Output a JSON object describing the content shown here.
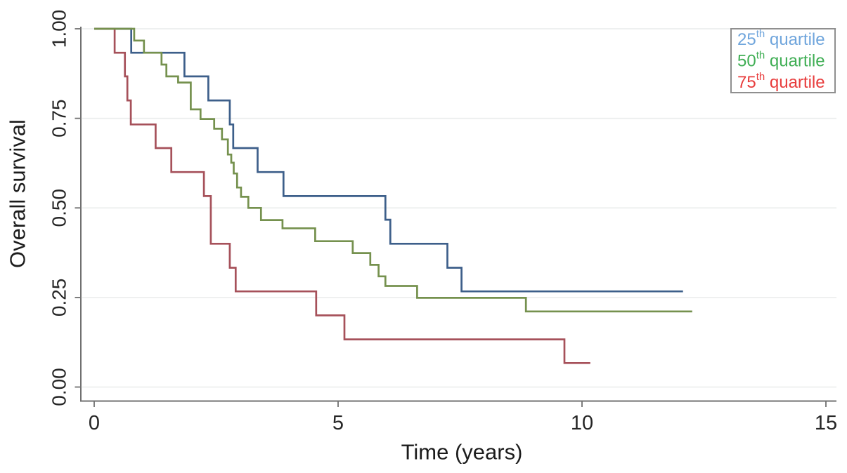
{
  "chart_data": {
    "type": "line",
    "variant": "kaplan-meier-step-survival",
    "title": "",
    "xlabel": "Time (years)",
    "ylabel": "Overall survival",
    "xlim": [
      0,
      15
    ],
    "ylim": [
      0,
      1
    ],
    "xticks": [
      {
        "label": "0",
        "value": 0
      },
      {
        "label": "5",
        "value": 5
      },
      {
        "label": "10",
        "value": 10
      },
      {
        "label": "15",
        "value": 15
      }
    ],
    "yticks": [
      {
        "label": "0.00",
        "value": 0
      },
      {
        "label": "0.25",
        "value": 0.25
      },
      {
        "label": "0.50",
        "value": 0.5
      },
      {
        "label": "0.75",
        "value": 0.75
      },
      {
        "label": "1.00",
        "value": 1
      }
    ],
    "grid": "horizontal gridlines at y ticks, no vertical gridlines",
    "legend": {
      "position": "top-right",
      "items": [
        {
          "name": "25th quartile",
          "prefix": "25",
          "sup": "th",
          "rest": " quartile",
          "text_color": "#6fa5dc"
        },
        {
          "name": "50th quartile",
          "prefix": "50",
          "sup": "th",
          "rest": " quartile",
          "text_color": "#3fae54"
        },
        {
          "name": "75th quartile",
          "prefix": "75",
          "sup": "th",
          "rest": " quartile",
          "text_color": "#e83c3c"
        }
      ]
    },
    "series": [
      {
        "name": "25th quartile",
        "color": "#3d5f8a",
        "end_time": 12.07,
        "points": [
          [
            0,
            1.0
          ],
          [
            0.76,
            0.933
          ],
          [
            1.85,
            0.867
          ],
          [
            2.34,
            0.8
          ],
          [
            2.78,
            0.733
          ],
          [
            2.85,
            0.667
          ],
          [
            3.35,
            0.6
          ],
          [
            3.88,
            0.533
          ],
          [
            5.97,
            0.467
          ],
          [
            6.07,
            0.4
          ],
          [
            7.24,
            0.333
          ],
          [
            7.53,
            0.267
          ]
        ]
      },
      {
        "name": "50th quartile",
        "color": "#75914e",
        "end_time": 12.26,
        "points": [
          [
            0,
            1.0
          ],
          [
            0.82,
            0.967
          ],
          [
            1.02,
            0.933
          ],
          [
            1.38,
            0.9
          ],
          [
            1.48,
            0.867
          ],
          [
            1.72,
            0.85
          ],
          [
            1.98,
            0.775
          ],
          [
            2.18,
            0.748
          ],
          [
            2.46,
            0.721
          ],
          [
            2.62,
            0.691
          ],
          [
            2.74,
            0.649
          ],
          [
            2.81,
            0.626
          ],
          [
            2.86,
            0.596
          ],
          [
            2.93,
            0.557
          ],
          [
            3.01,
            0.531
          ],
          [
            3.16,
            0.5
          ],
          [
            3.42,
            0.466
          ],
          [
            3.86,
            0.443
          ],
          [
            4.53,
            0.407
          ],
          [
            5.3,
            0.374
          ],
          [
            5.66,
            0.341
          ],
          [
            5.83,
            0.309
          ],
          [
            5.97,
            0.282
          ],
          [
            6.62,
            0.249
          ],
          [
            8.85,
            0.211
          ]
        ]
      },
      {
        "name": "75th quartile",
        "color": "#a6515a",
        "end_time": 10.17,
        "points": [
          [
            0,
            1.0
          ],
          [
            0.42,
            0.933
          ],
          [
            0.63,
            0.867
          ],
          [
            0.68,
            0.8
          ],
          [
            0.75,
            0.733
          ],
          [
            1.26,
            0.667
          ],
          [
            1.58,
            0.6
          ],
          [
            2.25,
            0.533
          ],
          [
            2.39,
            0.4
          ],
          [
            2.78,
            0.333
          ],
          [
            2.9,
            0.267
          ],
          [
            4.55,
            0.2
          ],
          [
            5.13,
            0.133
          ],
          [
            9.64,
            0.067
          ]
        ]
      }
    ],
    "draw_order": [
      0,
      2,
      1
    ],
    "colors": {
      "background": "#ffffff",
      "axis": "#707070",
      "gridline": "#e9eceb",
      "tick_label": "#262626",
      "legend_border": "#8f8f8f"
    }
  }
}
